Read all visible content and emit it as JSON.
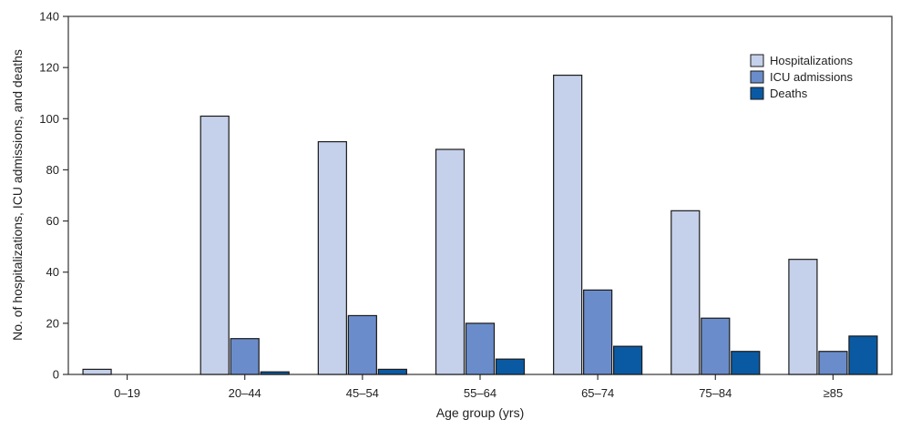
{
  "chart_data": {
    "type": "bar",
    "title": "",
    "xlabel": "Age group (yrs)",
    "ylabel": "No. of hospitalizations, ICU admissions, and deaths",
    "ylim": [
      0,
      140
    ],
    "yticks": [
      0,
      20,
      40,
      60,
      80,
      100,
      120,
      140
    ],
    "grid": false,
    "legend_position": "top-right",
    "categories": [
      "0–19",
      "20–44",
      "45–54",
      "55–64",
      "65–74",
      "75–84",
      "≥85"
    ],
    "series": [
      {
        "name": "Hospitalizations",
        "color": "#c5d0ea",
        "values": [
          2,
          101,
          91,
          88,
          117,
          64,
          45
        ]
      },
      {
        "name": "ICU admissions",
        "color": "#6a8cca",
        "values": [
          0,
          14,
          23,
          20,
          33,
          22,
          9
        ]
      },
      {
        "name": "Deaths",
        "color": "#0a5aa3",
        "values": [
          0,
          1,
          2,
          6,
          11,
          9,
          15
        ]
      }
    ]
  }
}
